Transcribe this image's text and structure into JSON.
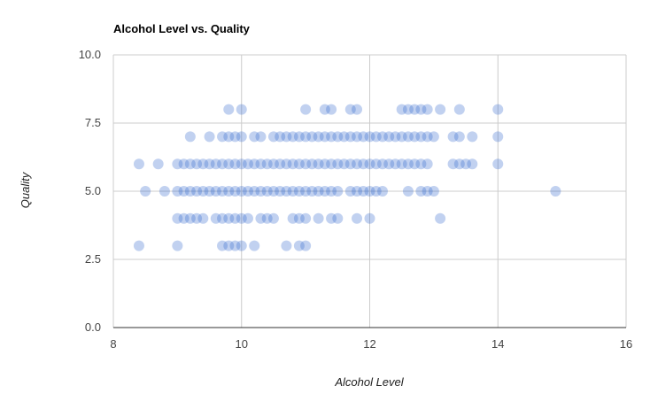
{
  "chart_data": {
    "type": "scatter",
    "title": "Alcohol Level vs. Quality",
    "xlabel": "Alcohol Level",
    "ylabel": "Quality",
    "xlim": [
      8,
      16
    ],
    "ylim": [
      0,
      10
    ],
    "x_ticks": [
      "8",
      "10",
      "12",
      "14",
      "16"
    ],
    "y_ticks": [
      "0.0",
      "2.5",
      "5.0",
      "7.5",
      "10.0"
    ],
    "grid": true,
    "legend": "none",
    "colors": {
      "point": "#3366cc",
      "grid": "#cccccc",
      "baseline": "#333333"
    },
    "points": [
      [
        8.4,
        3
      ],
      [
        9,
        3
      ],
      [
        9.8,
        3
      ],
      [
        9.7,
        3
      ],
      [
        9.9,
        3
      ],
      [
        10,
        3
      ],
      [
        10.2,
        3
      ],
      [
        10.7,
        3
      ],
      [
        10.9,
        3
      ],
      [
        11,
        3
      ],
      [
        9,
        4
      ],
      [
        9.1,
        4
      ],
      [
        9.2,
        4
      ],
      [
        9.3,
        4
      ],
      [
        9.4,
        4
      ],
      [
        9.6,
        4
      ],
      [
        9.7,
        4
      ],
      [
        9.8,
        4
      ],
      [
        9.9,
        4
      ],
      [
        10,
        4
      ],
      [
        10.1,
        4
      ],
      [
        10.3,
        4
      ],
      [
        10.4,
        4
      ],
      [
        10.5,
        4
      ],
      [
        10.8,
        4
      ],
      [
        10.9,
        4
      ],
      [
        11,
        4
      ],
      [
        11.2,
        4
      ],
      [
        11.4,
        4
      ],
      [
        11.5,
        4
      ],
      [
        11.8,
        4
      ],
      [
        12,
        4
      ],
      [
        13.1,
        4
      ],
      [
        8.5,
        5
      ],
      [
        8.8,
        5
      ],
      [
        9,
        5
      ],
      [
        9.1,
        5
      ],
      [
        9.2,
        5
      ],
      [
        9.3,
        5
      ],
      [
        9.4,
        5
      ],
      [
        9.5,
        5
      ],
      [
        9.6,
        5
      ],
      [
        9.7,
        5
      ],
      [
        9.8,
        5
      ],
      [
        9.9,
        5
      ],
      [
        10,
        5
      ],
      [
        10.1,
        5
      ],
      [
        10.2,
        5
      ],
      [
        10.3,
        5
      ],
      [
        10.4,
        5
      ],
      [
        10.5,
        5
      ],
      [
        10.6,
        5
      ],
      [
        10.7,
        5
      ],
      [
        10.8,
        5
      ],
      [
        10.9,
        5
      ],
      [
        11,
        5
      ],
      [
        11.1,
        5
      ],
      [
        11.2,
        5
      ],
      [
        11.3,
        5
      ],
      [
        11.4,
        5
      ],
      [
        11.5,
        5
      ],
      [
        11.7,
        5
      ],
      [
        11.8,
        5
      ],
      [
        11.9,
        5
      ],
      [
        12,
        5
      ],
      [
        12.1,
        5
      ],
      [
        12.2,
        5
      ],
      [
        12.6,
        5
      ],
      [
        12.8,
        5
      ],
      [
        12.9,
        5
      ],
      [
        13,
        5
      ],
      [
        14.9,
        5
      ],
      [
        8.4,
        6
      ],
      [
        8.7,
        6
      ],
      [
        9,
        6
      ],
      [
        9.1,
        6
      ],
      [
        9.2,
        6
      ],
      [
        9.3,
        6
      ],
      [
        9.4,
        6
      ],
      [
        9.5,
        6
      ],
      [
        9.6,
        6
      ],
      [
        9.7,
        6
      ],
      [
        9.8,
        6
      ],
      [
        9.9,
        6
      ],
      [
        10,
        6
      ],
      [
        10.1,
        6
      ],
      [
        10.2,
        6
      ],
      [
        10.3,
        6
      ],
      [
        10.4,
        6
      ],
      [
        10.5,
        6
      ],
      [
        10.6,
        6
      ],
      [
        10.7,
        6
      ],
      [
        10.8,
        6
      ],
      [
        10.9,
        6
      ],
      [
        11,
        6
      ],
      [
        11.1,
        6
      ],
      [
        11.2,
        6
      ],
      [
        11.3,
        6
      ],
      [
        11.4,
        6
      ],
      [
        11.5,
        6
      ],
      [
        11.6,
        6
      ],
      [
        11.7,
        6
      ],
      [
        11.8,
        6
      ],
      [
        11.9,
        6
      ],
      [
        12,
        6
      ],
      [
        12.1,
        6
      ],
      [
        12.2,
        6
      ],
      [
        12.3,
        6
      ],
      [
        12.4,
        6
      ],
      [
        12.5,
        6
      ],
      [
        12.6,
        6
      ],
      [
        12.7,
        6
      ],
      [
        12.8,
        6
      ],
      [
        12.9,
        6
      ],
      [
        13.3,
        6
      ],
      [
        13.4,
        6
      ],
      [
        13.5,
        6
      ],
      [
        13.6,
        6
      ],
      [
        14,
        6
      ],
      [
        9.2,
        7
      ],
      [
        9.5,
        7
      ],
      [
        9.7,
        7
      ],
      [
        9.8,
        7
      ],
      [
        9.9,
        7
      ],
      [
        10,
        7
      ],
      [
        10.2,
        7
      ],
      [
        10.3,
        7
      ],
      [
        10.5,
        7
      ],
      [
        10.6,
        7
      ],
      [
        10.7,
        7
      ],
      [
        10.8,
        7
      ],
      [
        10.9,
        7
      ],
      [
        11,
        7
      ],
      [
        11.1,
        7
      ],
      [
        11.2,
        7
      ],
      [
        11.3,
        7
      ],
      [
        11.4,
        7
      ],
      [
        11.5,
        7
      ],
      [
        11.6,
        7
      ],
      [
        11.7,
        7
      ],
      [
        11.8,
        7
      ],
      [
        11.9,
        7
      ],
      [
        12,
        7
      ],
      [
        12.1,
        7
      ],
      [
        12.2,
        7
      ],
      [
        12.3,
        7
      ],
      [
        12.4,
        7
      ],
      [
        12.5,
        7
      ],
      [
        12.6,
        7
      ],
      [
        12.7,
        7
      ],
      [
        12.8,
        7
      ],
      [
        12.9,
        7
      ],
      [
        13,
        7
      ],
      [
        13.3,
        7
      ],
      [
        13.4,
        7
      ],
      [
        13.6,
        7
      ],
      [
        14,
        7
      ],
      [
        9.8,
        8
      ],
      [
        10,
        8
      ],
      [
        11,
        8
      ],
      [
        11.3,
        8
      ],
      [
        11.4,
        8
      ],
      [
        11.7,
        8
      ],
      [
        11.8,
        8
      ],
      [
        12.5,
        8
      ],
      [
        12.6,
        8
      ],
      [
        12.7,
        8
      ],
      [
        12.8,
        8
      ],
      [
        12.9,
        8
      ],
      [
        13.1,
        8
      ],
      [
        13.4,
        8
      ],
      [
        14,
        8
      ]
    ]
  }
}
